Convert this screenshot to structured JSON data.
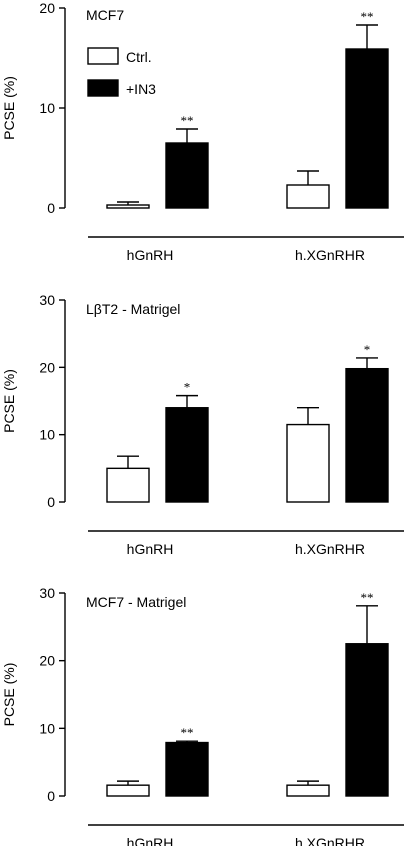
{
  "legend": {
    "ctrl_label": "Ctrl.",
    "in3_label": "+IN3",
    "ctrl_color": "#ffffff",
    "in3_color": "#000000"
  },
  "chart_data": [
    {
      "type": "bar",
      "title": "MCF7",
      "ylabel": "PCSE (%)",
      "ylim": [
        0,
        20
      ],
      "yticks": [
        "0",
        "10",
        "20"
      ],
      "categories": [
        "hGnRH",
        "h.XGnRHR"
      ],
      "series": [
        {
          "name": "Ctrl.",
          "values": [
            0.3,
            2.3
          ],
          "errors": [
            0.3,
            1.4
          ],
          "significance": [
            "",
            ""
          ]
        },
        {
          "name": "+IN3",
          "values": [
            6.5,
            15.9
          ],
          "errors": [
            1.4,
            2.4
          ],
          "significance": [
            "**",
            "**"
          ]
        }
      ]
    },
    {
      "type": "bar",
      "title": "LβT2 - Matrigel",
      "ylabel": "PCSE (%)",
      "ylim": [
        0,
        30
      ],
      "yticks": [
        "0",
        "10",
        "20",
        "30"
      ],
      "categories": [
        "hGnRH",
        "h.XGnRHR"
      ],
      "series": [
        {
          "name": "Ctrl.",
          "values": [
            5.0,
            11.5
          ],
          "errors": [
            1.8,
            2.5
          ],
          "significance": [
            "",
            ""
          ]
        },
        {
          "name": "+IN3",
          "values": [
            14.0,
            19.8
          ],
          "errors": [
            1.8,
            1.6
          ],
          "significance": [
            "*",
            "*"
          ]
        }
      ]
    },
    {
      "type": "bar",
      "title": "MCF7 - Matrigel",
      "ylabel": "PCSE (%)",
      "ylim": [
        0,
        30
      ],
      "yticks": [
        "0",
        "10",
        "20",
        "30"
      ],
      "categories": [
        "hGnRH",
        "h.XGnRHR"
      ],
      "series": [
        {
          "name": "Ctrl.",
          "values": [
            1.6,
            1.6
          ],
          "errors": [
            0.6,
            0.6
          ],
          "significance": [
            "",
            ""
          ]
        },
        {
          "name": "+IN3",
          "values": [
            7.9,
            22.5
          ],
          "errors": [
            0.2,
            5.6
          ],
          "significance": [
            "**",
            "**"
          ]
        }
      ]
    }
  ]
}
